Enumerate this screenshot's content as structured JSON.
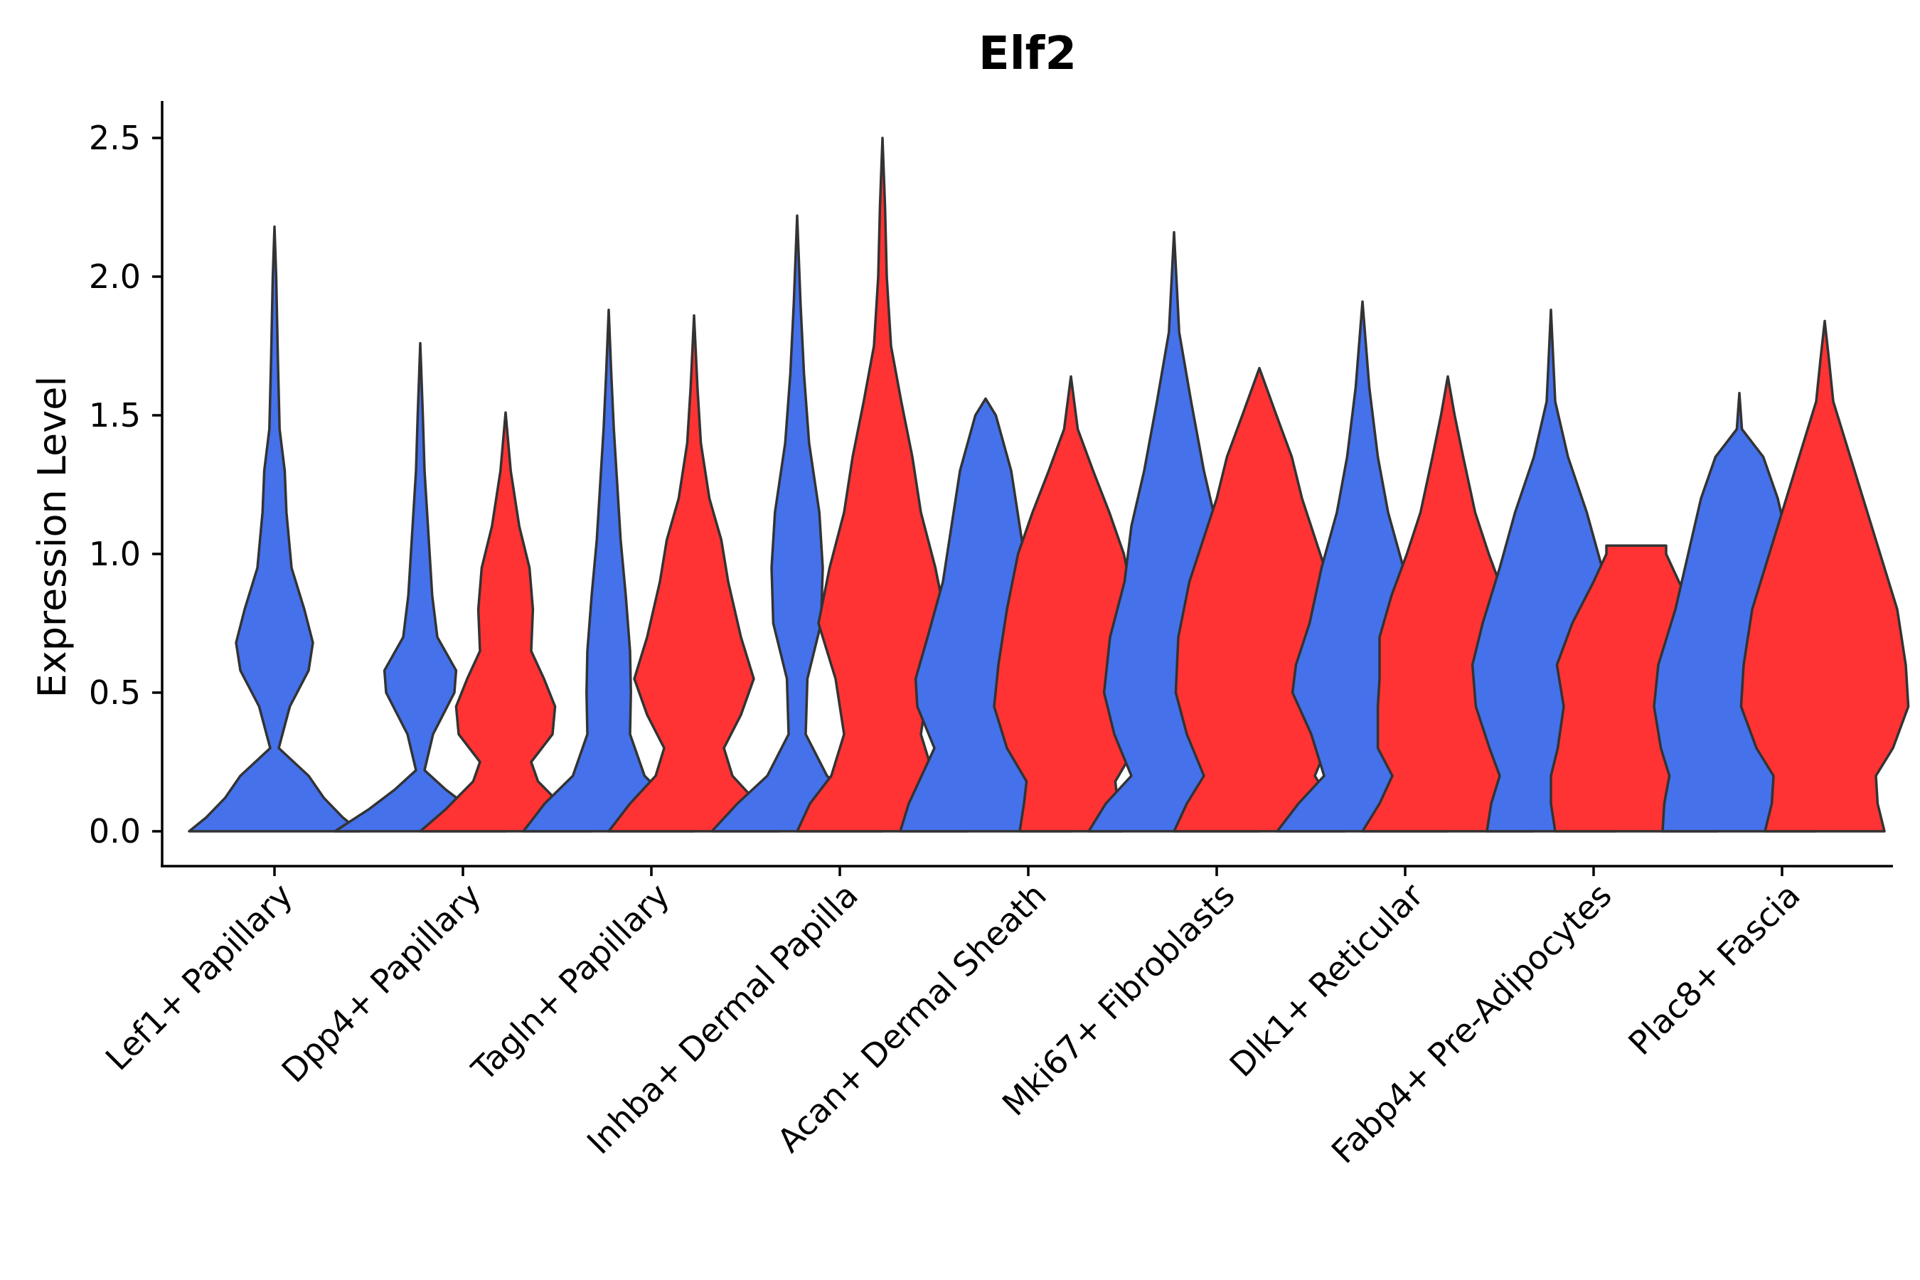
{
  "chart_data": {
    "type": "violin",
    "title": "Elf2",
    "xlabel": "",
    "ylabel": "Expression Level",
    "ylim": [
      -0.12,
      2.63
    ],
    "yticks": [
      0.0,
      0.5,
      1.0,
      1.5,
      2.0,
      2.5
    ],
    "ytick_labels": [
      "0.0",
      "0.5",
      "1.0",
      "1.5",
      "2.0",
      "2.5"
    ],
    "grid": false,
    "legend": "none",
    "series_colors": {
      "blue": "#4571EB",
      "red": "#FF3333"
    },
    "categories": [
      "Lef1+ Papillary",
      "Dpp4+ Papillary",
      "Tagln+ Papillary",
      "Inhba+ Dermal Papilla",
      "Acan+ Dermal Sheath",
      "Mki67+ Fibroblasts",
      "Dlk1+ Reticular",
      "Fabp4+ Pre-Adipocytes",
      "Plac8+ Fascia"
    ],
    "violins": [
      {
        "category": "Lef1+ Papillary",
        "group": "blue",
        "min": 0.0,
        "max": 2.18,
        "profile": [
          [
            0.0,
            1.0
          ],
          [
            0.05,
            0.8
          ],
          [
            0.12,
            0.58
          ],
          [
            0.2,
            0.4
          ],
          [
            0.3,
            0.05
          ],
          [
            0.45,
            0.18
          ],
          [
            0.58,
            0.4
          ],
          [
            0.68,
            0.45
          ],
          [
            0.8,
            0.35
          ],
          [
            0.95,
            0.2
          ],
          [
            1.15,
            0.14
          ],
          [
            1.3,
            0.12
          ],
          [
            1.45,
            0.06
          ],
          [
            1.7,
            0.04
          ],
          [
            2.0,
            0.02
          ],
          [
            2.18,
            0.0
          ]
        ]
      },
      {
        "category": "Dpp4+ Papillary",
        "group": "blue",
        "min": 0.0,
        "max": 1.76,
        "profile": [
          [
            0.0,
            1.0
          ],
          [
            0.08,
            0.6
          ],
          [
            0.15,
            0.3
          ],
          [
            0.22,
            0.05
          ],
          [
            0.35,
            0.15
          ],
          [
            0.5,
            0.4
          ],
          [
            0.58,
            0.42
          ],
          [
            0.7,
            0.2
          ],
          [
            0.85,
            0.14
          ],
          [
            1.05,
            0.1
          ],
          [
            1.3,
            0.05
          ],
          [
            1.5,
            0.03
          ],
          [
            1.76,
            0.0
          ]
        ]
      },
      {
        "category": "Dpp4+ Papillary",
        "group": "red",
        "min": 0.0,
        "max": 1.51,
        "profile": [
          [
            0.0,
            1.0
          ],
          [
            0.08,
            0.7
          ],
          [
            0.18,
            0.38
          ],
          [
            0.25,
            0.3
          ],
          [
            0.35,
            0.55
          ],
          [
            0.45,
            0.58
          ],
          [
            0.55,
            0.45
          ],
          [
            0.65,
            0.3
          ],
          [
            0.8,
            0.32
          ],
          [
            0.95,
            0.28
          ],
          [
            1.1,
            0.16
          ],
          [
            1.3,
            0.06
          ],
          [
            1.51,
            0.0
          ]
        ]
      },
      {
        "category": "Tagln+ Papillary",
        "group": "blue",
        "min": 0.0,
        "max": 1.88,
        "profile": [
          [
            0.0,
            1.0
          ],
          [
            0.1,
            0.75
          ],
          [
            0.2,
            0.42
          ],
          [
            0.35,
            0.25
          ],
          [
            0.5,
            0.26
          ],
          [
            0.65,
            0.25
          ],
          [
            0.85,
            0.2
          ],
          [
            1.05,
            0.14
          ],
          [
            1.25,
            0.1
          ],
          [
            1.45,
            0.06
          ],
          [
            1.65,
            0.03
          ],
          [
            1.88,
            0.0
          ]
        ]
      },
      {
        "category": "Tagln+ Papillary",
        "group": "red",
        "min": 0.0,
        "max": 1.86,
        "profile": [
          [
            0.0,
            1.0
          ],
          [
            0.1,
            0.75
          ],
          [
            0.2,
            0.45
          ],
          [
            0.3,
            0.35
          ],
          [
            0.42,
            0.55
          ],
          [
            0.55,
            0.7
          ],
          [
            0.7,
            0.55
          ],
          [
            0.9,
            0.4
          ],
          [
            1.05,
            0.32
          ],
          [
            1.2,
            0.18
          ],
          [
            1.4,
            0.08
          ],
          [
            1.6,
            0.04
          ],
          [
            1.86,
            0.0
          ]
        ]
      },
      {
        "category": "Inhba+ Dermal Papilla",
        "group": "blue",
        "min": 0.0,
        "max": 2.22,
        "profile": [
          [
            0.0,
            1.0
          ],
          [
            0.1,
            0.7
          ],
          [
            0.2,
            0.35
          ],
          [
            0.35,
            0.1
          ],
          [
            0.55,
            0.12
          ],
          [
            0.75,
            0.28
          ],
          [
            0.95,
            0.3
          ],
          [
            1.15,
            0.26
          ],
          [
            1.4,
            0.14
          ],
          [
            1.65,
            0.08
          ],
          [
            1.9,
            0.04
          ],
          [
            2.22,
            0.0
          ]
        ]
      },
      {
        "category": "Inhba+ Dermal Papilla",
        "group": "red",
        "min": 0.0,
        "max": 2.5,
        "profile": [
          [
            0.0,
            1.0
          ],
          [
            0.1,
            0.85
          ],
          [
            0.2,
            0.6
          ],
          [
            0.35,
            0.45
          ],
          [
            0.55,
            0.55
          ],
          [
            0.75,
            0.75
          ],
          [
            0.95,
            0.62
          ],
          [
            1.15,
            0.45
          ],
          [
            1.35,
            0.35
          ],
          [
            1.55,
            0.22
          ],
          [
            1.75,
            0.1
          ],
          [
            2.0,
            0.05
          ],
          [
            2.25,
            0.03
          ],
          [
            2.5,
            0.0
          ]
        ]
      },
      {
        "category": "Acan+ Dermal Sheath",
        "group": "blue",
        "min": 0.0,
        "max": 1.56,
        "profile": [
          [
            0.0,
            1.0
          ],
          [
            0.1,
            0.9
          ],
          [
            0.2,
            0.75
          ],
          [
            0.3,
            0.6
          ],
          [
            0.45,
            0.8
          ],
          [
            0.55,
            0.82
          ],
          [
            0.7,
            0.68
          ],
          [
            0.9,
            0.5
          ],
          [
            1.1,
            0.4
          ],
          [
            1.3,
            0.3
          ],
          [
            1.5,
            0.12
          ],
          [
            1.56,
            0.0
          ]
        ]
      },
      {
        "category": "Acan+ Dermal Sheath",
        "group": "red",
        "min": 0.0,
        "max": 1.64,
        "profile": [
          [
            0.0,
            0.6
          ],
          [
            0.1,
            0.55
          ],
          [
            0.18,
            0.52
          ],
          [
            0.3,
            0.75
          ],
          [
            0.45,
            0.9
          ],
          [
            0.6,
            0.85
          ],
          [
            0.8,
            0.75
          ],
          [
            1.0,
            0.62
          ],
          [
            1.15,
            0.45
          ],
          [
            1.3,
            0.26
          ],
          [
            1.45,
            0.08
          ],
          [
            1.64,
            0.0
          ]
        ]
      },
      {
        "category": "Mki67+ Fibroblasts",
        "group": "blue",
        "min": 0.0,
        "max": 2.16,
        "profile": [
          [
            0.0,
            1.0
          ],
          [
            0.1,
            0.8
          ],
          [
            0.2,
            0.5
          ],
          [
            0.35,
            0.7
          ],
          [
            0.5,
            0.82
          ],
          [
            0.7,
            0.75
          ],
          [
            0.9,
            0.58
          ],
          [
            1.1,
            0.5
          ],
          [
            1.3,
            0.35
          ],
          [
            1.55,
            0.2
          ],
          [
            1.8,
            0.06
          ],
          [
            2.16,
            0.0
          ]
        ]
      },
      {
        "category": "Mki67+ Fibroblasts",
        "group": "red",
        "min": 0.0,
        "max": 1.67,
        "profile": [
          [
            0.0,
            1.0
          ],
          [
            0.1,
            0.85
          ],
          [
            0.2,
            0.65
          ],
          [
            0.35,
            0.85
          ],
          [
            0.5,
            0.98
          ],
          [
            0.7,
            0.95
          ],
          [
            0.9,
            0.82
          ],
          [
            1.05,
            0.66
          ],
          [
            1.2,
            0.5
          ],
          [
            1.35,
            0.38
          ],
          [
            1.5,
            0.2
          ],
          [
            1.67,
            0.0
          ]
        ]
      },
      {
        "category": "Dlk1+ Reticular",
        "group": "blue",
        "min": 0.0,
        "max": 1.91,
        "profile": [
          [
            0.0,
            1.0
          ],
          [
            0.1,
            0.75
          ],
          [
            0.2,
            0.45
          ],
          [
            0.35,
            0.6
          ],
          [
            0.5,
            0.82
          ],
          [
            0.6,
            0.78
          ],
          [
            0.75,
            0.62
          ],
          [
            0.95,
            0.48
          ],
          [
            1.15,
            0.3
          ],
          [
            1.35,
            0.18
          ],
          [
            1.6,
            0.08
          ],
          [
            1.91,
            0.0
          ]
        ]
      },
      {
        "category": "Dlk1+ Reticular",
        "group": "red",
        "min": 0.0,
        "max": 1.64,
        "profile": [
          [
            0.0,
            1.0
          ],
          [
            0.1,
            0.8
          ],
          [
            0.2,
            0.65
          ],
          [
            0.3,
            0.82
          ],
          [
            0.45,
            0.82
          ],
          [
            0.55,
            0.8
          ],
          [
            0.7,
            0.8
          ],
          [
            0.85,
            0.66
          ],
          [
            1.0,
            0.48
          ],
          [
            1.15,
            0.32
          ],
          [
            1.35,
            0.18
          ],
          [
            1.5,
            0.08
          ],
          [
            1.64,
            0.0
          ]
        ]
      },
      {
        "category": "Fabp4+ Pre-Adipocytes",
        "group": "blue",
        "min": 0.0,
        "max": 1.88,
        "profile": [
          [
            0.0,
            0.75
          ],
          [
            0.1,
            0.7
          ],
          [
            0.2,
            0.6
          ],
          [
            0.3,
            0.72
          ],
          [
            0.45,
            0.88
          ],
          [
            0.6,
            0.92
          ],
          [
            0.75,
            0.8
          ],
          [
            0.95,
            0.6
          ],
          [
            1.15,
            0.42
          ],
          [
            1.35,
            0.2
          ],
          [
            1.55,
            0.05
          ],
          [
            1.88,
            0.0
          ]
        ]
      },
      {
        "category": "Fabp4+ Pre-Adipocytes",
        "group": "red",
        "min": 0.0,
        "max": 1.03,
        "profile": [
          [
            0.0,
            0.95
          ],
          [
            0.1,
            1.0
          ],
          [
            0.2,
            1.0
          ],
          [
            0.3,
            0.92
          ],
          [
            0.45,
            0.85
          ],
          [
            0.6,
            0.93
          ],
          [
            0.75,
            0.75
          ],
          [
            0.9,
            0.5
          ],
          [
            1.0,
            0.35
          ],
          [
            1.03,
            0.35
          ]
        ]
      },
      {
        "category": "Plac8+ Fascia",
        "group": "blue",
        "min": 0.0,
        "max": 1.58,
        "profile": [
          [
            0.0,
            0.9
          ],
          [
            0.1,
            0.88
          ],
          [
            0.2,
            0.82
          ],
          [
            0.3,
            0.92
          ],
          [
            0.45,
            1.0
          ],
          [
            0.6,
            0.95
          ],
          [
            0.8,
            0.75
          ],
          [
            1.0,
            0.6
          ],
          [
            1.2,
            0.45
          ],
          [
            1.35,
            0.28
          ],
          [
            1.45,
            0.03
          ],
          [
            1.58,
            0.0
          ]
        ]
      },
      {
        "category": "Plac8+ Fascia",
        "group": "red",
        "min": 0.0,
        "max": 1.84,
        "profile": [
          [
            0.0,
            0.7
          ],
          [
            0.1,
            0.62
          ],
          [
            0.2,
            0.6
          ],
          [
            0.3,
            0.8
          ],
          [
            0.45,
            0.98
          ],
          [
            0.6,
            0.95
          ],
          [
            0.8,
            0.85
          ],
          [
            1.0,
            0.65
          ],
          [
            1.2,
            0.45
          ],
          [
            1.4,
            0.25
          ],
          [
            1.55,
            0.1
          ],
          [
            1.7,
            0.05
          ],
          [
            1.84,
            0.0
          ]
        ]
      }
    ]
  }
}
